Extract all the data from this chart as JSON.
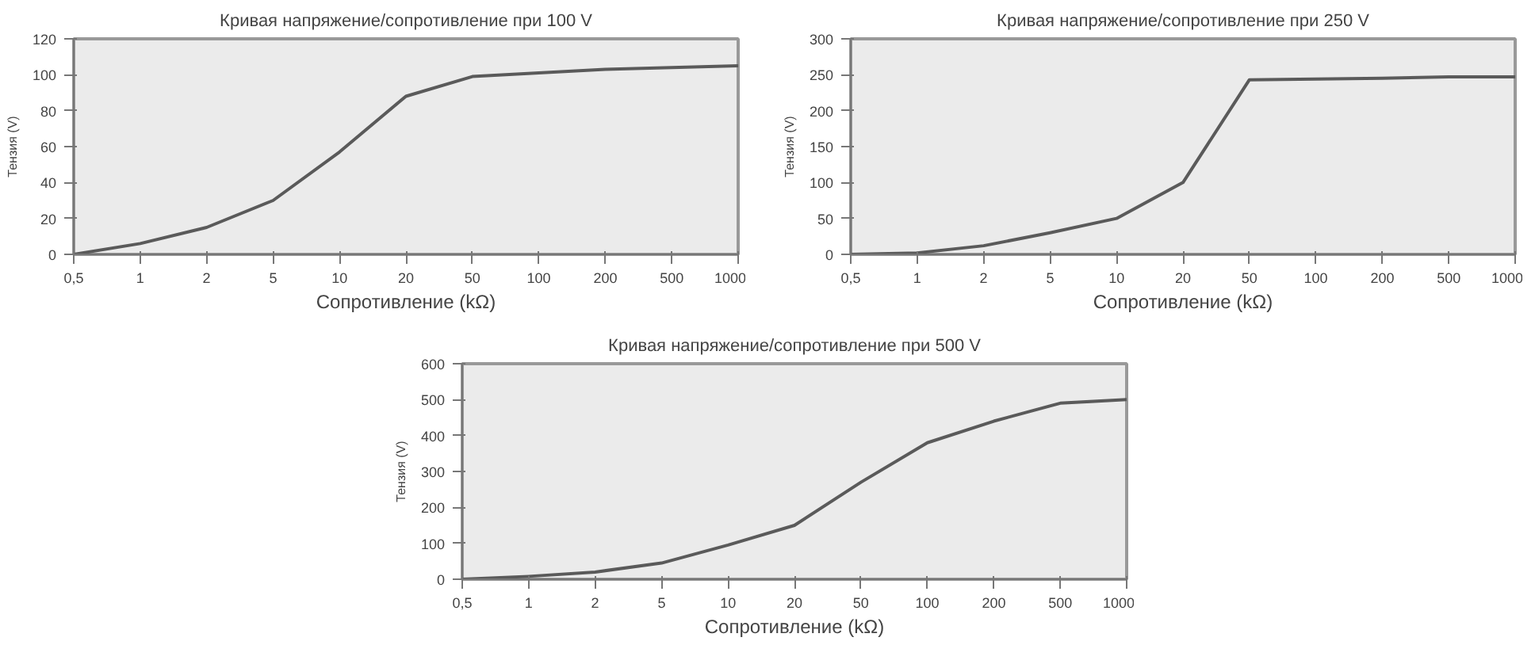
{
  "chart_data": [
    {
      "type": "line",
      "title": "Кривая напряжение/сопротивление при 100 V",
      "xlabel": "Сопротивление (kΩ)",
      "ylabel": "Тензия (V)",
      "categories": [
        "0,5",
        "1",
        "2",
        "5",
        "10",
        "20",
        "50",
        "100",
        "200",
        "500",
        "1000"
      ],
      "values": [
        0,
        6,
        15,
        30,
        57,
        88,
        99,
        101,
        103,
        104,
        105
      ],
      "color": "#5a5a5a",
      "ylim": [
        0,
        120
      ],
      "yticks": [
        0,
        20,
        40,
        60,
        80,
        100,
        120
      ],
      "grid": false
    },
    {
      "type": "line",
      "title": "Кривая напряжение/сопротивление при 250 V",
      "xlabel": "Сопротивление (kΩ)",
      "ylabel": "Тензия (V)",
      "categories": [
        "0,5",
        "1",
        "2",
        "5",
        "10",
        "20",
        "50",
        "100",
        "200",
        "500",
        "1000"
      ],
      "values": [
        0,
        2,
        12,
        30,
        50,
        100,
        243,
        244,
        245,
        247,
        247
      ],
      "color": "#5a5a5a",
      "ylim": [
        0,
        300
      ],
      "yticks": [
        0,
        50,
        100,
        150,
        200,
        250,
        300
      ],
      "grid": false
    },
    {
      "type": "line",
      "title": "Кривая напряжение/сопротивление при 500 V",
      "xlabel": "Сопротивление (kΩ)",
      "ylabel": "Тензия (V)",
      "categories": [
        "0,5",
        "1",
        "2",
        "5",
        "10",
        "20",
        "50",
        "100",
        "200",
        "500",
        "1000"
      ],
      "values": [
        0,
        8,
        20,
        45,
        95,
        150,
        270,
        380,
        440,
        490,
        500
      ],
      "color": "#5a5a5a",
      "ylim": [
        0,
        600
      ],
      "yticks": [
        0,
        100,
        200,
        300,
        400,
        500,
        600
      ],
      "grid": false
    }
  ]
}
